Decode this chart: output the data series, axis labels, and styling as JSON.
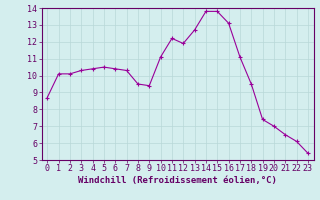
{
  "x": [
    0,
    1,
    2,
    3,
    4,
    5,
    6,
    7,
    8,
    9,
    10,
    11,
    12,
    13,
    14,
    15,
    16,
    17,
    18,
    19,
    20,
    21,
    22,
    23
  ],
  "y": [
    8.7,
    10.1,
    10.1,
    10.3,
    10.4,
    10.5,
    10.4,
    10.3,
    9.5,
    9.4,
    11.1,
    12.2,
    11.9,
    12.7,
    13.8,
    13.8,
    13.1,
    11.1,
    9.5,
    7.4,
    7.0,
    6.5,
    6.1,
    5.4
  ],
  "line_color": "#990099",
  "marker": "+",
  "marker_size": 3,
  "bg_color": "#d4eeee",
  "grid_color": "#b8d8d8",
  "xlabel": "Windchill (Refroidissement éolien,°C)",
  "xlim": [
    -0.5,
    23.5
  ],
  "ylim": [
    5,
    14
  ],
  "xticks": [
    0,
    1,
    2,
    3,
    4,
    5,
    6,
    7,
    8,
    9,
    10,
    11,
    12,
    13,
    14,
    15,
    16,
    17,
    18,
    19,
    20,
    21,
    22,
    23
  ],
  "yticks": [
    5,
    6,
    7,
    8,
    9,
    10,
    11,
    12,
    13,
    14
  ],
  "xlabel_fontsize": 6.5,
  "tick_fontsize": 6,
  "axis_label_color": "#660066",
  "tick_color": "#660066",
  "spine_color": "#660066",
  "line_width": 0.8,
  "marker_edge_width": 0.8
}
